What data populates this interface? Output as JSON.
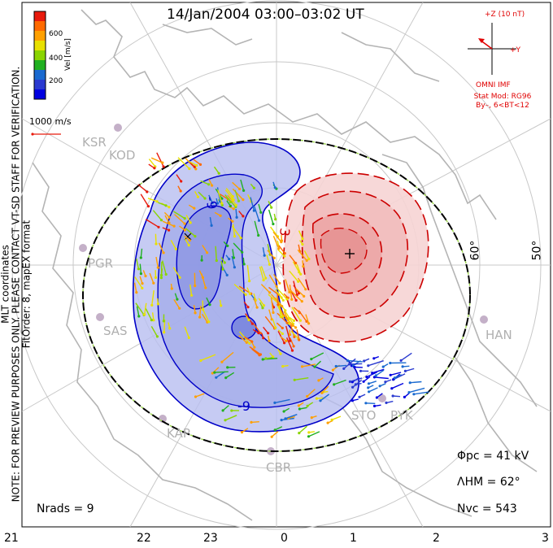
{
  "title": "14/Jan/2004 03:00–03:02 UT",
  "note_lines": [
    "MLT coordinates",
    "NOTE: FOR PREVIEW PURPOSES ONLY. PLEASE CONTACT VT-SD STAFF FOR VERIFICATION.",
    "FitOrder: 8, mapEX format"
  ],
  "colorbar": {
    "title": "Vel [m/s]",
    "ticks": [
      "600",
      "400",
      "200"
    ],
    "colors": [
      "#e81a0c",
      "#ff6a00",
      "#ffa000",
      "#e8e000",
      "#8ad400",
      "#20b020",
      "#1a6ad0",
      "#2a3ad0",
      "#0000e0"
    ]
  },
  "vector_scale": "1000 m/s",
  "imf": {
    "axis_z": "+Z (10 nT)",
    "axis_y": "+Y",
    "source": "OMNI IMF",
    "model_lines": [
      "Stat Mod: RG96",
      "By–, 6<BT<12"
    ]
  },
  "stations": [
    "KSR",
    "KOD",
    "PGR",
    "SAS",
    "KAP",
    "CBR",
    "STO",
    "PYK",
    "HAN"
  ],
  "latitude_labels": [
    "60°",
    "50°"
  ],
  "contour_labels": [
    "-9",
    "-9",
    "3"
  ],
  "stats": {
    "phi": "Φpc = 41 kV",
    "lambda": "ΛHM = 62°",
    "nvc": "Nvc = 543",
    "nrads": "Nrads = 9"
  },
  "hours": [
    "21",
    "22",
    "23",
    "0",
    "1",
    "2",
    "3"
  ],
  "colors": {
    "negative_cell": "#0000c8",
    "positive_cell": "#cc0000",
    "grid": "#c8c8c8",
    "coast": "#b4b4b4",
    "hmb": "#000000"
  }
}
